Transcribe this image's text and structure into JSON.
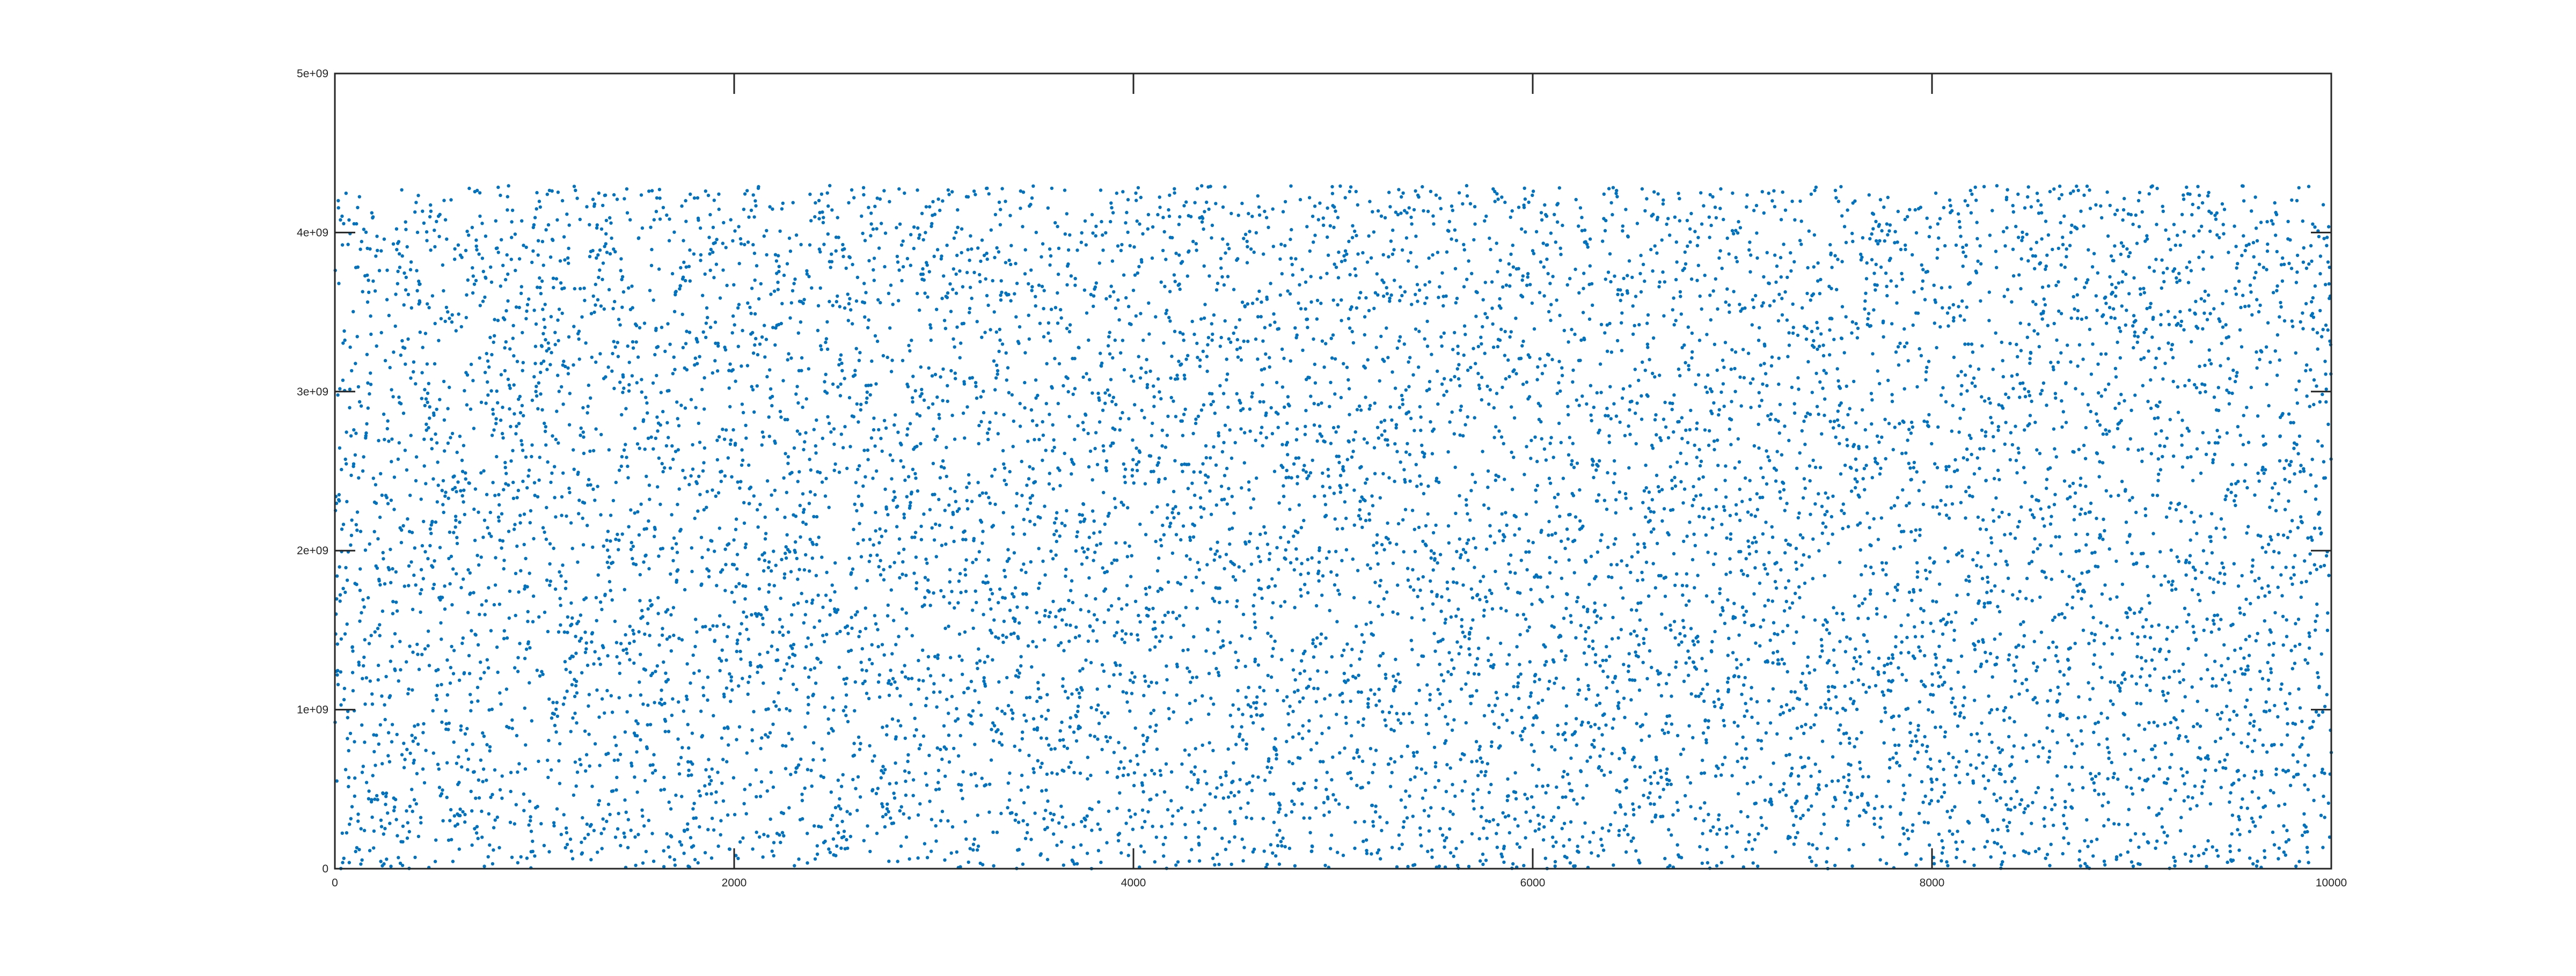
{
  "chart_data": {
    "type": "scatter",
    "title": "",
    "xlabel": "",
    "ylabel": "",
    "xlim": [
      0,
      10000
    ],
    "ylim": [
      0,
      5000000000
    ],
    "x_ticks": [
      0,
      2000,
      4000,
      6000,
      8000,
      10000
    ],
    "x_tick_labels": [
      "0",
      "2000",
      "4000",
      "6000",
      "8000",
      "10000"
    ],
    "y_ticks": [
      0,
      1000000000,
      2000000000,
      3000000000,
      4000000000,
      5000000000
    ],
    "y_tick_labels": [
      "0",
      "1e+09",
      "2e+09",
      "3e+09",
      "4e+09",
      "5e+09"
    ],
    "series": [
      {
        "n_points": 10000,
        "x_range": [
          1,
          10000
        ],
        "y_range": [
          0,
          4294967295
        ],
        "distribution": "uniform random",
        "marker": "dot",
        "color": "#0072BD"
      }
    ],
    "grid": false,
    "legend": "none",
    "box": true
  }
}
